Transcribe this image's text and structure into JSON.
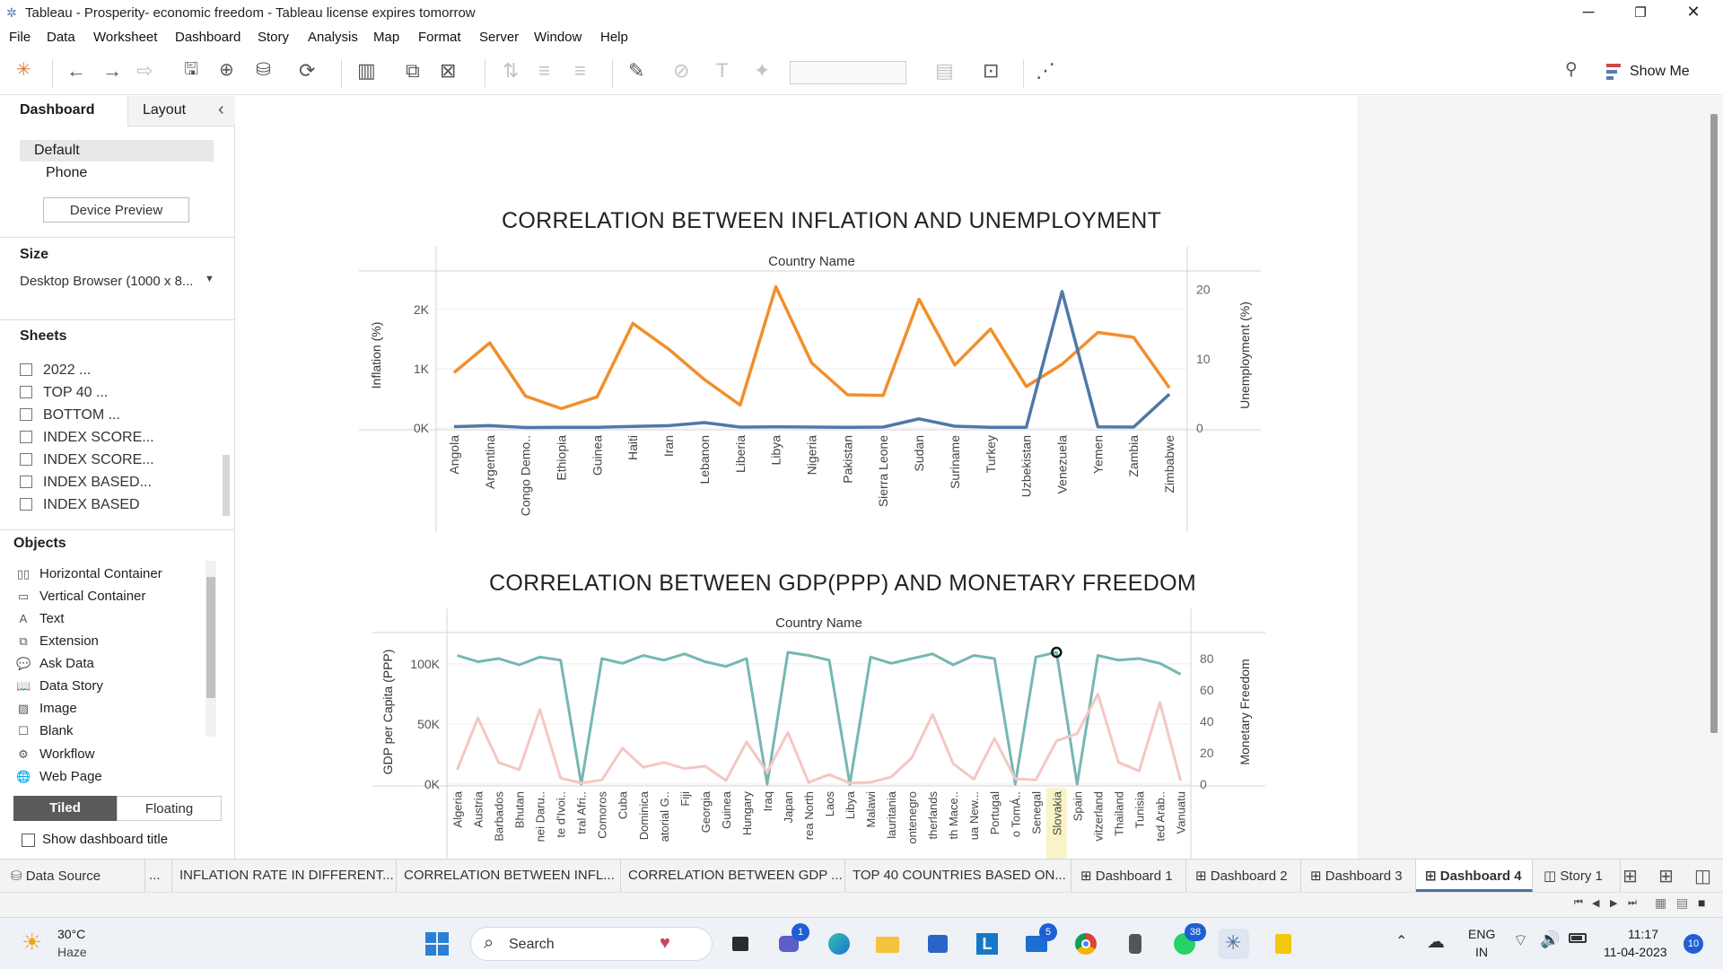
{
  "window": {
    "title": "Tableau - Prosperity- economic freedom - Tableau license expires tomorrow",
    "min": "─",
    "max": "❐",
    "close": "✕"
  },
  "menu": [
    "File",
    "Data",
    "Worksheet",
    "Dashboard",
    "Story",
    "Analysis",
    "Map",
    "Format",
    "Server",
    "Window",
    "Help"
  ],
  "toolbar": {
    "show_me": "Show Me"
  },
  "left_pane": {
    "tab_dashboard": "Dashboard",
    "tab_layout": "Layout",
    "collapse": "‹",
    "device_default": "Default",
    "device_phone": "Phone",
    "device_preview": "Device Preview",
    "size_heading": "Size",
    "size_value": "Desktop Browser (1000 x 8...",
    "sheets_heading": "Sheets",
    "sheets": [
      "2022 ...",
      "TOP 40 ...",
      "BOTTOM ...",
      "INDEX SCORE...",
      "INDEX SCORE...",
      "INDEX BASED...",
      "INDEX BASED"
    ],
    "objects_heading": "Objects",
    "objects": [
      {
        "label": "Horizontal Container",
        "icon": "horizontal-container-icon",
        "glyph": "▯▯"
      },
      {
        "label": "Vertical Container",
        "icon": "vertical-container-icon",
        "glyph": "▭"
      },
      {
        "label": "Text",
        "icon": "text-icon",
        "glyph": "A"
      },
      {
        "label": "Extension",
        "icon": "extension-icon",
        "glyph": "⧉"
      },
      {
        "label": "Ask Data",
        "icon": "ask-data-icon",
        "glyph": "💬"
      },
      {
        "label": "Data Story",
        "icon": "data-story-icon",
        "glyph": "📖"
      },
      {
        "label": "Image",
        "icon": "image-icon",
        "glyph": "▨"
      },
      {
        "label": "Blank",
        "icon": "blank-icon",
        "glyph": "☐"
      },
      {
        "label": "Workflow",
        "icon": "workflow-icon",
        "glyph": "⚙"
      },
      {
        "label": "Web Page",
        "icon": "web-page-icon",
        "glyph": "🌐"
      }
    ],
    "tiled": "Tiled",
    "floating": "Floating",
    "show_title": "Show dashboard title"
  },
  "chart1_title": "CORRELATION BETWEEN INFLATION AND UNEMPLOYMENT",
  "chart2_title": "CORRELATION BETWEEN GDP(PPP) AND MONETARY FREEDOM",
  "chart_data": [
    {
      "type": "line",
      "title": "CORRELATION BETWEEN INFLATION AND UNEMPLOYMENT",
      "header": "Country Name",
      "categories": [
        "Angola",
        "Argentina",
        "Congo Demo..",
        "Ethiopia",
        "Guinea",
        "Haiti",
        "Iran",
        "Lebanon",
        "Liberia",
        "Libya",
        "Nigeria",
        "Pakistan",
        "Sierra Leone",
        "Sudan",
        "Suriname",
        "Turkey",
        "Uzbekistan",
        "Venezuela",
        "Yemen",
        "Zambia",
        "Zimbabwe"
      ],
      "ylabel": "Inflation (%)",
      "y2label": "Unemployment (%)",
      "y_ticks": [
        "0K",
        "1K",
        "2K"
      ],
      "y2_ticks": [
        "0",
        "10",
        "20"
      ],
      "ylim": [
        0,
        2450
      ],
      "y2lim": [
        0,
        21
      ],
      "series": [
        {
          "name": "Unemployment (%)",
          "axis": "right",
          "color": "#f28e2b",
          "values": [
            8,
            12.3,
            4.6,
            2.8,
            4.5,
            15.1,
            11.4,
            7,
            3.3,
            20.4,
            9.4,
            4.8,
            4.7,
            18.6,
            9.1,
            14.3,
            6,
            9.2,
            13.8,
            13.1,
            5.8
          ]
        },
        {
          "name": "Inflation (%)",
          "axis": "left",
          "color": "#4e79a7",
          "values": [
            22,
            40,
            8,
            12,
            10,
            25,
            40,
            90,
            15,
            20,
            15,
            12,
            15,
            155,
            30,
            10,
            10,
            2300,
            20,
            15,
            570
          ]
        }
      ]
    },
    {
      "type": "line",
      "title": "CORRELATION BETWEEN GDP(PPP) AND MONETARY FREEDOM",
      "header": "Country Name",
      "categories": [
        "Algeria",
        "Austria",
        "Barbados",
        "Bhutan",
        "nei Daru..",
        "te d'Ivoi..",
        "tral Afri..",
        "Comoros",
        "Cuba",
        "Dominica",
        "atorial G..",
        "Fiji",
        "Georgia",
        "Guinea",
        "Hungary",
        "Iraq",
        "Japan",
        "rea North",
        "Laos",
        "Libya",
        "Malawi",
        "lauritania",
        "ontenegro",
        "therlands",
        "th Mace..",
        "ua New...",
        "Portugal",
        "o TomÁ..",
        "Senegal",
        "Slovakia",
        "Spain",
        "vitzerland",
        "Thailand",
        "Tunisia",
        "ted Arab..",
        "Vanuatu"
      ],
      "ylabel": "GDP per Capita (PPP)",
      "y2label": "Monetary Freedom",
      "y_ticks": [
        "0K",
        "50K",
        "100K"
      ],
      "y2_ticks": [
        "0",
        "20",
        "40",
        "60",
        "80"
      ],
      "ylim": [
        0,
        120000
      ],
      "y2lim": [
        0,
        92
      ],
      "highlight": "Slovakia",
      "series": [
        {
          "name": "Monetary Freedom",
          "axis": "right",
          "color": "#76b7b2",
          "values": [
            82,
            78,
            80,
            76,
            81,
            79,
            0,
            80,
            77,
            82,
            79,
            83,
            78,
            75,
            80,
            0,
            84,
            82,
            79,
            0,
            81,
            77,
            80,
            83,
            76,
            82,
            80,
            0,
            81,
            84,
            0,
            82,
            79,
            80,
            77,
            70
          ]
        },
        {
          "name": "GDP per Capita (PPP)",
          "axis": "left",
          "color": "#f4c7c3",
          "values": [
            12000,
            55000,
            18000,
            12000,
            62000,
            5000,
            1000,
            3500,
            30000,
            14000,
            18000,
            13000,
            15000,
            3000,
            35000,
            10000,
            43000,
            1500,
            8000,
            1000,
            1600,
            6000,
            22000,
            58000,
            17000,
            4000,
            38000,
            4500,
            3500,
            36000,
            42000,
            75000,
            18000,
            11000,
            68000,
            3000
          ]
        }
      ]
    }
  ],
  "bottom_tabs": {
    "data_source": "Data Source",
    "ellipsis": "...",
    "tabs": [
      "INFLATION RATE IN DIFFERENT...",
      "CORRELATION BETWEEN INFL...",
      "CORRELATION BETWEEN GDP ...",
      "TOP 40 COUNTRIES BASED ON...",
      "Dashboard 1",
      "Dashboard 2",
      "Dashboard 3",
      "Dashboard 4",
      "Story 1"
    ]
  },
  "taskbar": {
    "temp": "30°C",
    "weather": "Haze",
    "search": "Search",
    "lang1": "ENG",
    "lang2": "IN",
    "time": "11:17",
    "date": "11-04-2023",
    "notif_count": "10",
    "badge_teams": "1",
    "badge_mail": "5",
    "badge_whatsapp": "38"
  }
}
